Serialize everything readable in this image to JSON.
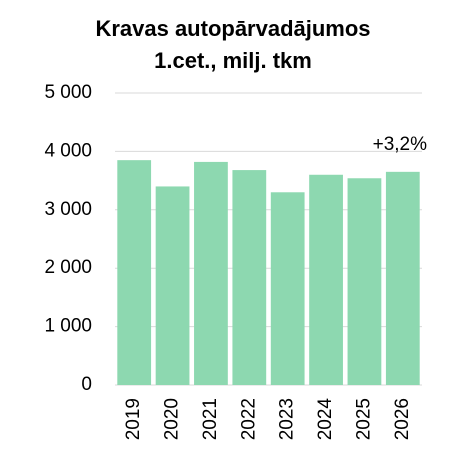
{
  "chart_data": {
    "type": "bar",
    "title": [
      "Kravas autopārvadājumos",
      "1.cet., milj. tkm"
    ],
    "categories": [
      "2019",
      "2020",
      "2021",
      "2022",
      "2023",
      "2024",
      "2025",
      "2026"
    ],
    "values": [
      3850,
      3400,
      3820,
      3680,
      3300,
      3600,
      3540,
      3650
    ],
    "color": "#8dd8b0",
    "ylim": [
      0,
      5000
    ],
    "yticks": [
      0,
      {
        "value": 1000,
        "label": "1 000"
      },
      {
        "value": 2000,
        "label": "2 000"
      },
      {
        "value": 3000,
        "label": "3 000"
      },
      {
        "value": 4000,
        "label": "4 000"
      },
      {
        "value": 5000,
        "label": "5 000"
      }
    ],
    "grid": true,
    "annotation": "+3,2%"
  }
}
